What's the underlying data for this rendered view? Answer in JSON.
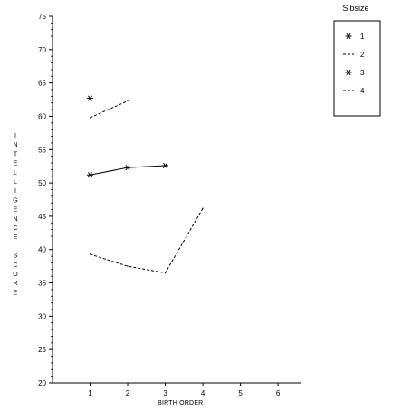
{
  "chart_data": {
    "type": "line",
    "title": "",
    "xlabel": "BIRTH ORDER",
    "ylabel": "INTELLIGENCE SCORE",
    "x_ticks": [
      1,
      2,
      3,
      4,
      5,
      6
    ],
    "y_ticks": [
      20,
      25,
      30,
      35,
      40,
      45,
      50,
      55,
      60,
      65,
      70,
      75
    ],
    "xlim": [
      0,
      6.6
    ],
    "ylim": [
      20,
      75
    ],
    "grid": false,
    "legend": {
      "title": "Sibsize",
      "placement": "top-right"
    },
    "series": [
      {
        "name": "1",
        "style": "solid",
        "marker": "star",
        "x": [
          1
        ],
        "y": [
          62.7
        ]
      },
      {
        "name": "2",
        "style": "dashed",
        "marker": "none",
        "x": [
          1,
          2
        ],
        "y": [
          59.8,
          62.3
        ]
      },
      {
        "name": "3",
        "style": "solid",
        "marker": "star",
        "x": [
          1,
          2,
          3
        ],
        "y": [
          51.2,
          52.3,
          52.6
        ]
      },
      {
        "name": "4",
        "style": "dashed",
        "marker": "none",
        "x": [
          1,
          2,
          3,
          4
        ],
        "y": [
          39.3,
          37.5,
          36.5,
          46.2
        ]
      }
    ]
  }
}
